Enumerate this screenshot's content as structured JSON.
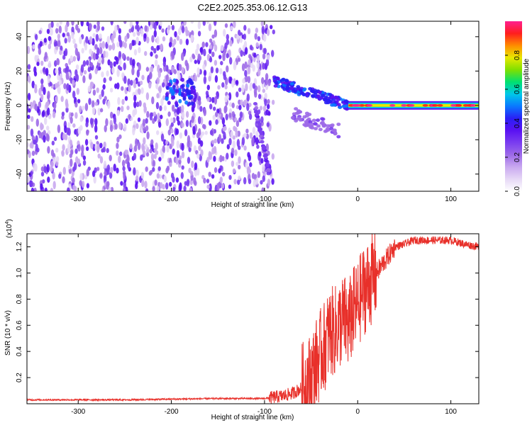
{
  "title": "C2E2.2025.353.06.12.G13",
  "colors": {
    "snr_line": "#e8302a",
    "cmap": [
      "#ffffff",
      "#e6d8f6",
      "#c9a9f0",
      "#9d6ae8",
      "#7a3df0",
      "#5a12f2",
      "#2a1ff5",
      "#0a78ff",
      "#00c8e8",
      "#00e070",
      "#7fe000",
      "#e8e800",
      "#ff8c00",
      "#ff1e1e",
      "#ff1f8f"
    ]
  },
  "chart_data": [
    {
      "type": "heatmap",
      "title": "C2E2.2025.353.06.12.G13",
      "xlabel": "Height of straight line (km)",
      "ylabel": "Frequency (Hz)",
      "xlim": [
        -355,
        130
      ],
      "ylim": [
        -50,
        49
      ],
      "xticks": [
        -300,
        -200,
        -100,
        0,
        100
      ],
      "xtick_labels": [
        "-300",
        "-200",
        "-100",
        "0",
        "100"
      ],
      "yticks": [
        -40,
        -20,
        0,
        20,
        40
      ],
      "ytick_labels": [
        "-40",
        "-20",
        "0",
        "20",
        "40"
      ],
      "colorbar": {
        "label": "Normalized spectral amplitude",
        "range": [
          0,
          1
        ],
        "ticks": [
          0.0,
          0.2,
          0.4,
          0.6,
          0.8
        ],
        "tick_labels": [
          "0.0",
          "0.2",
          "0.4",
          "0.6",
          "0.8"
        ]
      },
      "features": [
        {
          "name": "broadband noise",
          "x_range": [
            -355,
            -90
          ],
          "y_range": [
            -50,
            49
          ],
          "amplitude": 0.15
        },
        {
          "name": "transient blob",
          "x_range": [
            -205,
            -175
          ],
          "y_range": [
            0,
            15
          ],
          "amplitude": 0.35
        },
        {
          "name": "chirp",
          "x_from": -110,
          "x_to": -95,
          "y_from": 0,
          "y_to": -40,
          "amplitude": 0.3
        },
        {
          "name": "descending signal",
          "x_from": -90,
          "x_to": -10,
          "y_from": 14,
          "y_to": 0,
          "amplitude": 0.45
        },
        {
          "name": "sideband",
          "x_from": -70,
          "x_to": -20,
          "y_from": -5,
          "y_to": -15,
          "amplitude": 0.25
        },
        {
          "name": "steady tone",
          "x_from": -10,
          "x_to": 130,
          "y": 0,
          "amplitude": 0.9
        }
      ]
    },
    {
      "type": "line",
      "xlabel": "Height of straight line (km)",
      "ylabel": "SNR (10 * v/v)",
      "yscale_label": "(x10",
      "yscale_exp": "4",
      "xlim": [
        -355,
        130
      ],
      "ylim": [
        0.0,
        1.3
      ],
      "xticks": [
        -300,
        -200,
        -100,
        0,
        100
      ],
      "xtick_labels": [
        "-300",
        "-200",
        "-100",
        "0",
        "100"
      ],
      "yticks": [
        0.2,
        0.4,
        0.6,
        0.8,
        1.0,
        1.2
      ],
      "ytick_labels": [
        "0.2",
        "0.4",
        "0.6",
        "0.8",
        "1.0",
        "1.2"
      ],
      "series": [
        {
          "name": "SNR",
          "x": [
            -355,
            -300,
            -250,
            -200,
            -150,
            -120,
            -100,
            -90,
            -80,
            -70,
            -60,
            -50,
            -45,
            -40,
            -35,
            -30,
            -25,
            -20,
            -15,
            -10,
            -5,
            0,
            5,
            10,
            15,
            20,
            25,
            30,
            35,
            40,
            50,
            60,
            80,
            100,
            115,
            130
          ],
          "y": [
            0.03,
            0.03,
            0.03,
            0.035,
            0.04,
            0.04,
            0.04,
            0.05,
            0.06,
            0.08,
            0.12,
            0.2,
            0.3,
            0.38,
            0.45,
            0.55,
            0.55,
            0.6,
            0.65,
            0.6,
            0.7,
            0.75,
            0.85,
            0.9,
            0.95,
            1.0,
            1.05,
            1.1,
            1.15,
            1.2,
            1.22,
            1.25,
            1.25,
            1.25,
            1.22,
            1.2
          ]
        }
      ]
    }
  ]
}
